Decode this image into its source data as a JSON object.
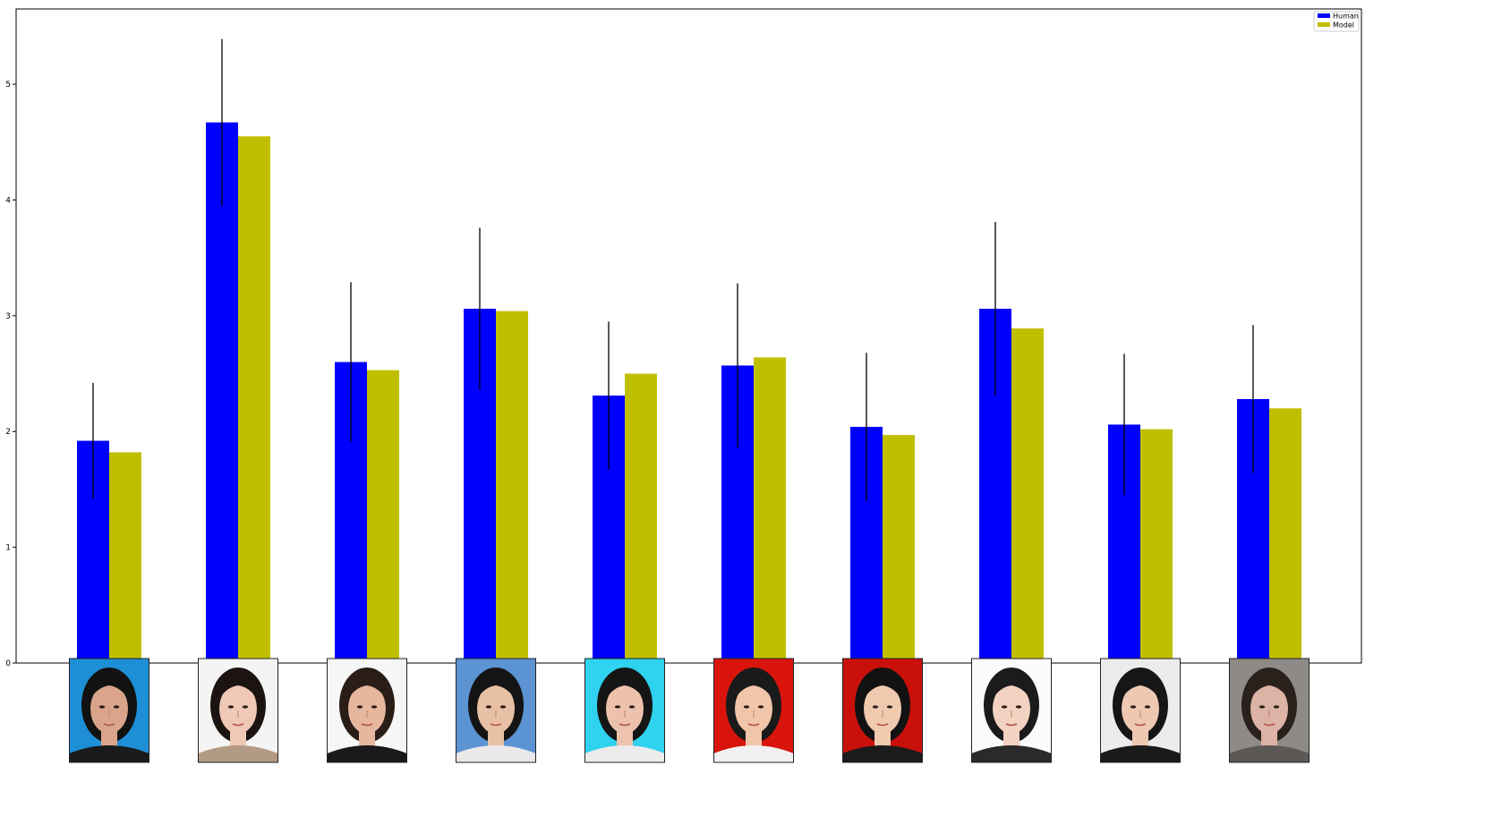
{
  "chart_data": {
    "type": "bar",
    "title": "",
    "xlabel": "",
    "ylabel": "",
    "ylim": [
      0,
      5.65
    ],
    "yticks": [
      "0",
      "1",
      "2",
      "3",
      "4",
      "5"
    ],
    "categories": [
      "",
      "",
      "",
      "",
      "",
      "",
      "",
      "",
      "",
      ""
    ],
    "series": [
      {
        "name": "Human",
        "color": "#0000ff",
        "values": [
          1.92,
          4.67,
          2.6,
          3.06,
          2.31,
          2.57,
          2.04,
          3.06,
          2.06,
          2.28
        ],
        "error": [
          0.5,
          0.72,
          0.69,
          0.7,
          0.64,
          0.71,
          0.64,
          0.75,
          0.61,
          0.64
        ]
      },
      {
        "name": "Model",
        "color": "#bfbf00",
        "values": [
          1.82,
          4.55,
          2.53,
          3.04,
          2.5,
          2.64,
          1.97,
          2.89,
          2.02,
          2.2
        ]
      }
    ],
    "x_tick_images": [
      {
        "name": "face-photo-1",
        "bg": "#1e8fd6",
        "hair": "#121212",
        "skin": "#d9a48a",
        "clothes": "#1a1a1a"
      },
      {
        "name": "face-photo-2",
        "bg": "#f4f4f4",
        "hair": "#1c1411",
        "skin": "#efc8b6",
        "clothes": "#b39a84"
      },
      {
        "name": "face-photo-3",
        "bg": "#f6f6f6",
        "hair": "#2a1d17",
        "skin": "#e6b79e",
        "clothes": "#1a1a1a"
      },
      {
        "name": "face-photo-4",
        "bg": "#5b93d3",
        "hair": "#141414",
        "skin": "#e8c0a6",
        "clothes": "#e9e9e9"
      },
      {
        "name": "face-photo-5",
        "bg": "#2fd3ef",
        "hair": "#151515",
        "skin": "#edc2ad",
        "clothes": "#ececec"
      },
      {
        "name": "face-photo-6",
        "bg": "#d9140c",
        "hair": "#1a1a1a",
        "skin": "#f1c5a8",
        "clothes": "#f1f1f1"
      },
      {
        "name": "face-photo-7",
        "bg": "#c9100b",
        "hair": "#121212",
        "skin": "#f0c9ae",
        "clothes": "#1b1b1b"
      },
      {
        "name": "face-photo-8",
        "bg": "#fbfbfb",
        "hair": "#1b1b1b",
        "skin": "#f3d2c1",
        "clothes": "#2a2a2a"
      },
      {
        "name": "face-photo-9",
        "bg": "#ececec",
        "hair": "#161616",
        "skin": "#efc8b1",
        "clothes": "#1a1a1a"
      },
      {
        "name": "face-photo-10",
        "bg": "#8e8a86",
        "hair": "#2a211c",
        "skin": "#dcb3a5",
        "clothes": "#5b5856"
      }
    ],
    "legend": {
      "placement": "top-right"
    },
    "grid": false
  }
}
